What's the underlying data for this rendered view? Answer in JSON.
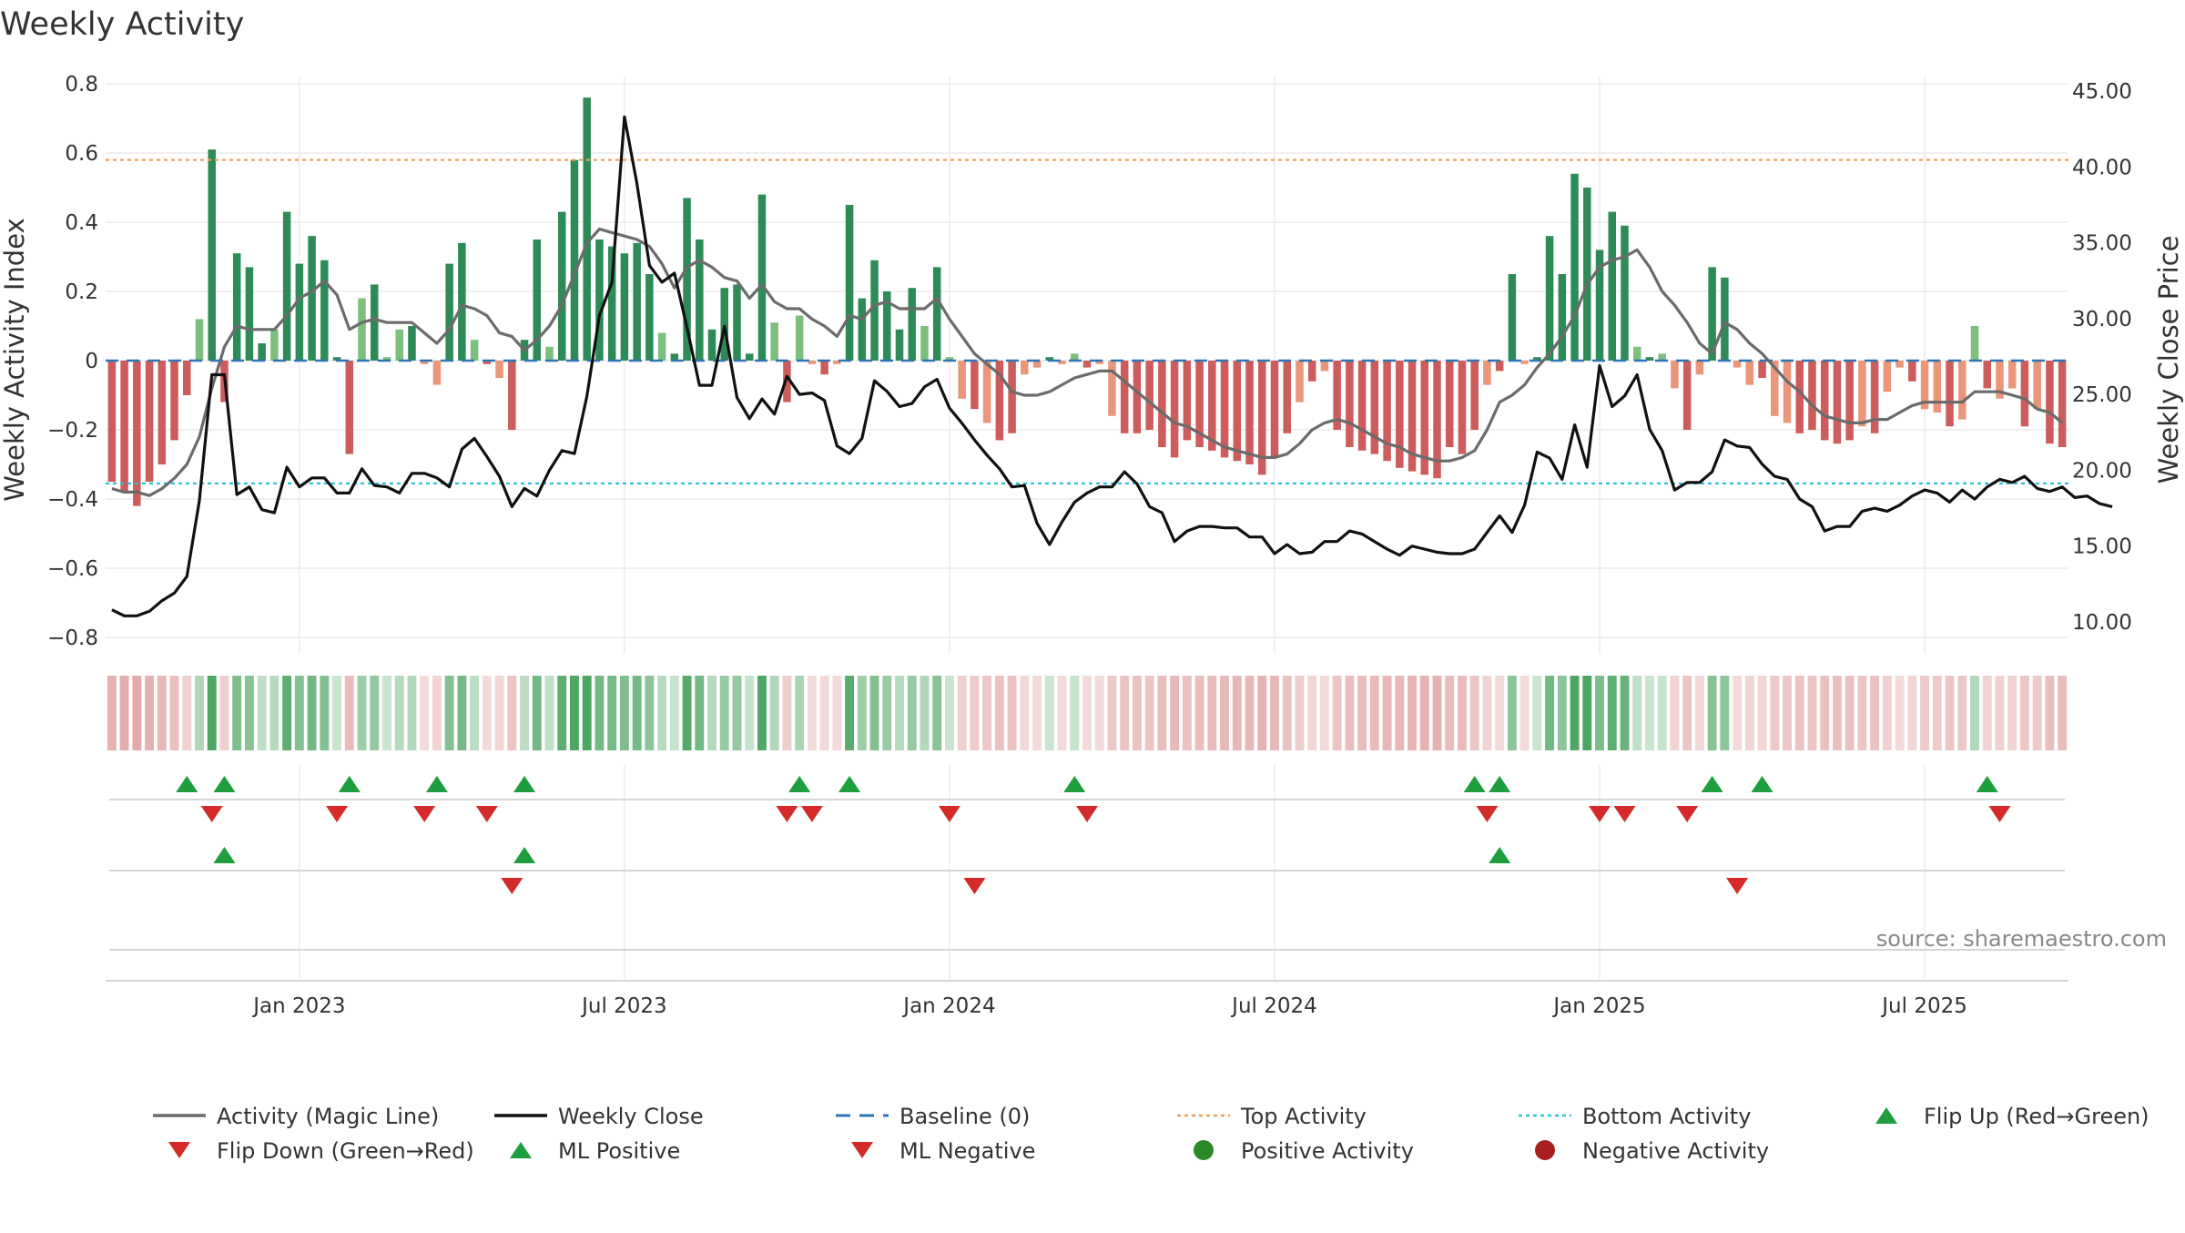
{
  "chart_data": {
    "type": "bar",
    "title": "Weekly Activity",
    "ylabel_left": "Weekly Activity Index",
    "ylabel_right": "Weekly Close Price",
    "source": "source: sharemaestro.com",
    "ylim_left": [
      -0.8,
      0.8
    ],
    "ylim_right": [
      10,
      45
    ],
    "left_ticks": [
      {
        "value": 0.8,
        "label": "0.8"
      },
      {
        "value": 0.6,
        "label": "0.6"
      },
      {
        "value": 0.4,
        "label": "0.4"
      },
      {
        "value": 0.2,
        "label": "0.2"
      },
      {
        "value": 0,
        "label": "0"
      },
      {
        "value": -0.2,
        "label": "−0.2"
      },
      {
        "value": -0.4,
        "label": "−0.4"
      },
      {
        "value": -0.6,
        "label": "−0.6"
      },
      {
        "value": -0.8,
        "label": "−0.8"
      }
    ],
    "right_ticks": [
      {
        "value": 45,
        "label": "45.00"
      },
      {
        "value": 40,
        "label": "40.00"
      },
      {
        "value": 35,
        "label": "35.00"
      },
      {
        "value": 30,
        "label": "30.00"
      },
      {
        "value": 25,
        "label": "25.00"
      },
      {
        "value": 20,
        "label": "20.00"
      },
      {
        "value": 15,
        "label": "15.00"
      },
      {
        "value": 10,
        "label": "10.00"
      }
    ],
    "x_range": [
      0,
      157
    ],
    "x_ticks": [
      {
        "week": 15,
        "label": "Jan 2023"
      },
      {
        "week": 41,
        "label": "Jul 2023"
      },
      {
        "week": 67,
        "label": "Jan 2024"
      },
      {
        "week": 93,
        "label": "Jul 2024"
      },
      {
        "week": 119,
        "label": "Jan 2025"
      },
      {
        "week": 145,
        "label": "Jul 2025"
      }
    ],
    "top_activity": 0.58,
    "bottom_activity": -0.355,
    "baseline": 0,
    "activity": [
      -0.35,
      -0.38,
      -0.42,
      -0.35,
      -0.3,
      -0.23,
      -0.1,
      0.12,
      0.61,
      -0.12,
      0.31,
      0.27,
      0.05,
      0.09,
      0.43,
      0.28,
      0.36,
      0.29,
      0.01,
      -0.27,
      0.18,
      0.22,
      0.01,
      0.09,
      0.1,
      -0.01,
      -0.07,
      0.28,
      0.34,
      0.06,
      -0.01,
      -0.05,
      -0.2,
      0.06,
      0.35,
      0.04,
      0.43,
      0.58,
      0.76,
      0.35,
      0.33,
      0.31,
      0.34,
      0.25,
      0.08,
      0.02,
      0.47,
      0.35,
      0.09,
      0.21,
      0.22,
      0.02,
      0.48,
      0.11,
      -0.12,
      0.13,
      -0.01,
      -0.04,
      -0.01,
      0.45,
      0.18,
      0.29,
      0.2,
      0.09,
      0.21,
      0.1,
      0.27,
      0.01,
      -0.11,
      -0.14,
      -0.18,
      -0.23,
      -0.21,
      -0.04,
      -0.02,
      0.01,
      -0.01,
      0.02,
      -0.02,
      -0.01,
      -0.16,
      -0.21,
      -0.21,
      -0.2,
      -0.25,
      -0.28,
      -0.23,
      -0.25,
      -0.26,
      -0.28,
      -0.29,
      -0.3,
      -0.33,
      -0.28,
      -0.21,
      -0.12,
      -0.06,
      -0.03,
      -0.2,
      -0.25,
      -0.26,
      -0.27,
      -0.29,
      -0.31,
      -0.32,
      -0.33,
      -0.34,
      -0.25,
      -0.27,
      -0.2,
      -0.07,
      -0.03,
      0.25,
      -0.01,
      0.01,
      0.36,
      0.25,
      0.54,
      0.5,
      0.32,
      0.43,
      0.39,
      0.04,
      0.01,
      0.02,
      -0.08,
      -0.2,
      -0.04,
      0.27,
      0.24,
      -0.02,
      -0.07,
      -0.05,
      -0.16,
      -0.18,
      -0.21,
      -0.2,
      -0.23,
      -0.24,
      -0.23,
      -0.19,
      -0.21,
      -0.09,
      -0.02,
      -0.06,
      -0.14,
      -0.15,
      -0.19,
      -0.17,
      0.1,
      -0.08,
      -0.11,
      -0.08,
      -0.19,
      -0.14,
      -0.24,
      -0.25
    ],
    "magic_line": [
      -0.37,
      -0.38,
      -0.38,
      -0.39,
      -0.37,
      -0.34,
      -0.3,
      -0.22,
      -0.08,
      0.04,
      0.1,
      0.09,
      0.09,
      0.09,
      0.13,
      0.18,
      0.2,
      0.23,
      0.19,
      0.09,
      0.11,
      0.12,
      0.11,
      0.11,
      0.11,
      0.08,
      0.05,
      0.09,
      0.16,
      0.15,
      0.13,
      0.08,
      0.07,
      0.03,
      0.06,
      0.1,
      0.16,
      0.25,
      0.34,
      0.38,
      0.37,
      0.36,
      0.35,
      0.33,
      0.28,
      0.21,
      0.27,
      0.29,
      0.27,
      0.24,
      0.23,
      0.18,
      0.22,
      0.17,
      0.15,
      0.15,
      0.12,
      0.1,
      0.07,
      0.13,
      0.12,
      0.16,
      0.17,
      0.15,
      0.15,
      0.15,
      0.18,
      0.12,
      0.07,
      0.02,
      -0.01,
      -0.04,
      -0.09,
      -0.1,
      -0.1,
      -0.09,
      -0.07,
      -0.05,
      -0.04,
      -0.03,
      -0.03,
      -0.06,
      -0.09,
      -0.12,
      -0.15,
      -0.18,
      -0.19,
      -0.21,
      -0.23,
      -0.25,
      -0.26,
      -0.27,
      -0.28,
      -0.28,
      -0.27,
      -0.24,
      -0.2,
      -0.18,
      -0.17,
      -0.18,
      -0.2,
      -0.22,
      -0.24,
      -0.25,
      -0.27,
      -0.28,
      -0.29,
      -0.29,
      -0.28,
      -0.26,
      -0.2,
      -0.12,
      -0.1,
      -0.07,
      -0.02,
      0.02,
      0.07,
      0.13,
      0.22,
      0.27,
      0.29,
      0.3,
      0.32,
      0.27,
      0.2,
      0.16,
      0.11,
      0.05,
      0.02,
      0.11,
      0.09,
      0.05,
      0.02,
      -0.02,
      -0.06,
      -0.09,
      -0.13,
      -0.16,
      -0.17,
      -0.18,
      -0.18,
      -0.17,
      -0.17,
      -0.15,
      -0.13,
      -0.12,
      -0.12,
      -0.12,
      -0.12,
      -0.09,
      -0.09,
      -0.09,
      -0.1,
      -0.11,
      -0.14,
      -0.15,
      -0.18
    ],
    "weekly_close": [
      10.8,
      10.4,
      10.4,
      10.7,
      11.4,
      11.9,
      13.0,
      18.0,
      26.3,
      26.3,
      18.4,
      18.9,
      17.4,
      17.2,
      20.2,
      18.9,
      19.5,
      19.5,
      18.5,
      18.5,
      20.1,
      19.0,
      18.9,
      18.5,
      19.8,
      19.8,
      19.5,
      18.9,
      21.4,
      22.1,
      20.9,
      19.6,
      17.6,
      18.8,
      18.3,
      20.0,
      21.3,
      21.1,
      24.9,
      30.2,
      32.4,
      43.3,
      38.9,
      33.5,
      32.4,
      33.0,
      29.4,
      25.6,
      25.6,
      29.5,
      24.8,
      23.4,
      24.7,
      23.7,
      26.2,
      25.0,
      25.1,
      24.6,
      21.6,
      21.1,
      22.1,
      25.9,
      25.2,
      24.2,
      24.4,
      25.5,
      26.0,
      24.1,
      23.1,
      22.0,
      21.0,
      20.1,
      18.9,
      19.0,
      16.5,
      15.1,
      16.6,
      17.9,
      18.5,
      18.9,
      18.9,
      19.9,
      19.1,
      17.6,
      17.2,
      15.3,
      16.0,
      16.3,
      16.3,
      16.2,
      16.2,
      15.6,
      15.6,
      14.5,
      15.1,
      14.5,
      14.6,
      15.3,
      15.3,
      16.0,
      15.8,
      15.3,
      14.8,
      14.4,
      15.0,
      14.8,
      14.6,
      14.5,
      14.5,
      14.8,
      15.9,
      17.0,
      15.9,
      17.7,
      21.2,
      20.8,
      19.4,
      23.0,
      20.2,
      26.9,
      24.2,
      24.9,
      26.3,
      22.7,
      21.3,
      18.7,
      19.2,
      19.2,
      19.9,
      22.0,
      21.6,
      21.5,
      20.4,
      19.6,
      19.4,
      18.1,
      17.6,
      16.0,
      16.3,
      16.3,
      17.3,
      17.5,
      17.3,
      17.7,
      18.3,
      18.7,
      18.5,
      17.9,
      18.7,
      18.1,
      18.9,
      19.4,
      19.2,
      19.6,
      18.8,
      18.6,
      18.9,
      18.2,
      18.3,
      17.8,
      17.6
    ],
    "flip_up_weeks": [
      6,
      9,
      19,
      26,
      33,
      55,
      59,
      77,
      109,
      111,
      128,
      132,
      150
    ],
    "flip_down_weeks": [
      8,
      18,
      25,
      30,
      54,
      56,
      67,
      78,
      110,
      119,
      121,
      126,
      151
    ],
    "ml_positive_weeks": [
      9,
      33,
      111
    ],
    "ml_negative_weeks": [
      32,
      69,
      130
    ],
    "legend": [
      {
        "key": "magic",
        "label": "Activity (Magic Line)"
      },
      {
        "key": "close",
        "label": "Weekly Close"
      },
      {
        "key": "baseline",
        "label": "Baseline (0)"
      },
      {
        "key": "top",
        "label": "Top Activity"
      },
      {
        "key": "bottom",
        "label": "Bottom Activity"
      },
      {
        "key": "flipup",
        "label": "Flip Up (Red→Green)"
      },
      {
        "key": "flipdown",
        "label": "Flip Down (Green→Red)"
      },
      {
        "key": "mlpos",
        "label": "ML Positive"
      },
      {
        "key": "mlneg",
        "label": "ML Negative"
      },
      {
        "key": "posact",
        "label": "Positive Activity"
      },
      {
        "key": "negact",
        "label": "Negative Activity"
      }
    ],
    "colors": {
      "magic_line": "#6b6b6b",
      "weekly_close": "#111111",
      "baseline": "#2e75b6",
      "top_activity": "#f0a05a",
      "bottom_activity": "#2bc4d6",
      "triangle_up": "#1e9e3e",
      "triangle_down": "#d42a2a",
      "positive_dot": "#2a8a2a",
      "negative_dot": "#a82020",
      "pos_strong": "#2e8b57",
      "pos_light": "#7dbf7d",
      "neg_strong": "#cd5c5c",
      "neg_light": "#e9967a"
    }
  }
}
